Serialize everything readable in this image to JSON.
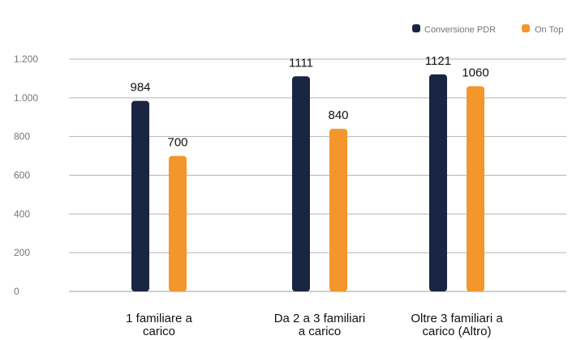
{
  "chart_data": {
    "type": "bar",
    "categories": [
      [
        "1 familiare a",
        "carico"
      ],
      [
        "Da 2 a 3 familiari",
        "a carico"
      ],
      [
        "Oltre 3 familiari a",
        "carico (Altro)"
      ]
    ],
    "series": [
      {
        "name": "Conversione PDR",
        "color": "#1a2544",
        "values": [
          984,
          1111,
          1121
        ],
        "labels": [
          "984",
          "1111",
          "1121"
        ]
      },
      {
        "name": "On Top",
        "color": "#f3962b",
        "values": [
          700,
          840,
          1060
        ],
        "labels": [
          "700",
          "840",
          "1060"
        ]
      }
    ],
    "yticks": [
      {
        "value": 0,
        "label": "0"
      },
      {
        "value": 200,
        "label": "200"
      },
      {
        "value": 400,
        "label": "400"
      },
      {
        "value": 600,
        "label": "600"
      },
      {
        "value": 800,
        "label": "800"
      },
      {
        "value": 1000,
        "label": "1.000"
      },
      {
        "value": 1200,
        "label": "1.200"
      }
    ],
    "ylim": [
      0,
      1200
    ],
    "grid": true,
    "legend_position": "top-right",
    "title": "",
    "xlabel": "",
    "ylabel": ""
  }
}
